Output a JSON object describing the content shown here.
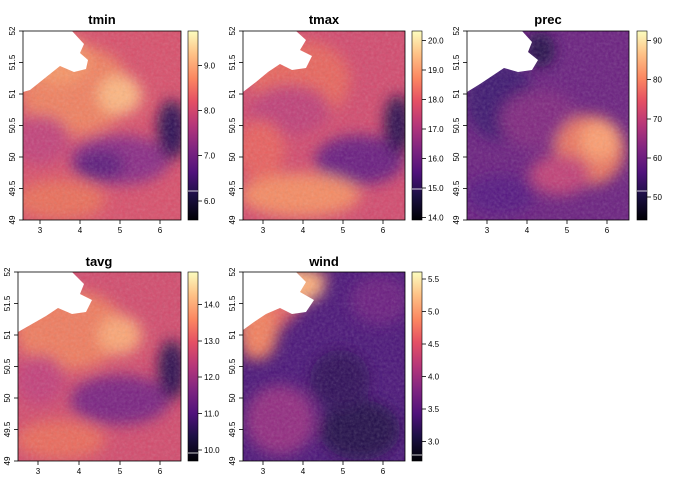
{
  "chart_data": [
    {
      "type": "heatmap",
      "title": "tmin",
      "xlim": [
        2.5,
        6.5
      ],
      "ylim": [
        49,
        52
      ],
      "x_ticks": [
        "3",
        "4",
        "5",
        "6"
      ],
      "y_ticks": [
        "49",
        "49.5",
        "50",
        "50.5",
        "51",
        "51.5",
        "52"
      ],
      "colorbar": {
        "range": [
          5.6,
          9.8
        ],
        "ticks": [
          "6.0",
          "7.0",
          "8.0",
          "9.0"
        ],
        "palette": "magma"
      }
    },
    {
      "type": "heatmap",
      "title": "tmax",
      "xlim": [
        2.5,
        6.5
      ],
      "ylim": [
        49,
        52
      ],
      "x_ticks": [
        "3",
        "4",
        "5",
        "6"
      ],
      "y_ticks": [
        "49",
        "49.5",
        "50",
        "50.5",
        "51",
        "51.5",
        "52"
      ],
      "colorbar": {
        "range": [
          13.8,
          20.2
        ],
        "ticks": [
          "14.0",
          "15.0",
          "16.0",
          "17.0",
          "18.0",
          "19.0",
          "20.0"
        ],
        "palette": "magma"
      }
    },
    {
      "type": "heatmap",
      "title": "prec",
      "xlim": [
        2.5,
        6.5
      ],
      "ylim": [
        49,
        52
      ],
      "x_ticks": [
        "3",
        "4",
        "5",
        "6"
      ],
      "y_ticks": [
        "49",
        "49.5",
        "50",
        "50.5",
        "51",
        "51.5",
        "52"
      ],
      "colorbar": {
        "range": [
          44,
          93
        ],
        "ticks": [
          "50",
          "60",
          "70",
          "80",
          "90"
        ],
        "palette": "magma"
      }
    },
    {
      "type": "heatmap",
      "title": "tavg",
      "xlim": [
        2.5,
        6.5
      ],
      "ylim": [
        49,
        52
      ],
      "x_ticks": [
        "3",
        "4",
        "5",
        "6"
      ],
      "y_ticks": [
        "49",
        "49.5",
        "50",
        "50.5",
        "51",
        "51.5",
        "52"
      ],
      "colorbar": {
        "range": [
          9.7,
          14.9
        ],
        "ticks": [
          "10.0",
          "11.0",
          "12.0",
          "13.0",
          "14.0"
        ],
        "palette": "magma"
      }
    },
    {
      "type": "heatmap",
      "title": "wind",
      "xlim": [
        2.5,
        6.5
      ],
      "ylim": [
        49,
        52
      ],
      "x_ticks": [
        "3",
        "4",
        "5",
        "6"
      ],
      "y_ticks": [
        "49",
        "49.5",
        "50",
        "50.5",
        "51",
        "51.5",
        "52"
      ],
      "colorbar": {
        "range": [
          2.7,
          5.6
        ],
        "ticks": [
          "3.0",
          "3.5",
          "4.0",
          "4.5",
          "5.0",
          "5.5"
        ],
        "palette": "magma"
      }
    }
  ]
}
